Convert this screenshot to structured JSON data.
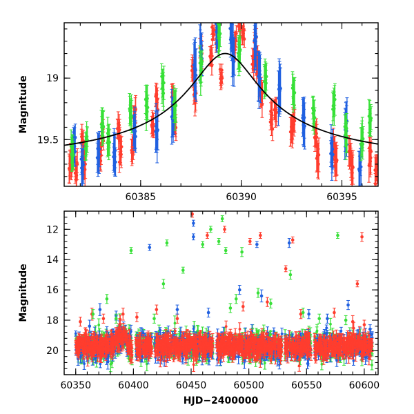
{
  "chart_data": [
    {
      "type": "scatter",
      "title": "",
      "xlabel": "",
      "ylabel": "Magnitude",
      "xlim": [
        60381.2,
        60396.8
      ],
      "ylim": [
        19.88,
        18.55
      ],
      "y_inverted": true,
      "error_bars": true,
      "x_ticks": [
        60385,
        60390,
        60395
      ],
      "x_tick_labels": [
        "60385",
        "60390",
        "60395"
      ],
      "y_ticks": [
        19,
        19.5
      ],
      "y_tick_labels": [
        "19",
        "19.5"
      ],
      "grid": false,
      "legend": "none",
      "series": [
        {
          "color": "#ff3d2e",
          "points": [
            [
              60381.5,
              19.72,
              0.09
            ],
            [
              60381.6,
              19.62,
              0.08
            ],
            [
              60381.8,
              19.75,
              0.1
            ],
            [
              60382.1,
              19.52,
              0.07
            ],
            [
              60382.2,
              19.68,
              0.1
            ],
            [
              60383.0,
              19.65,
              0.09
            ],
            [
              60383.1,
              19.48,
              0.07
            ],
            [
              60383.9,
              19.42,
              0.08
            ],
            [
              60384.0,
              19.6,
              0.09
            ],
            [
              60384.6,
              19.55,
              0.08
            ],
            [
              60384.7,
              19.3,
              0.09
            ],
            [
              60385.6,
              19.38,
              0.07
            ],
            [
              60385.8,
              19.2,
              0.08
            ],
            [
              60386.6,
              19.15,
              0.08
            ],
            [
              60386.7,
              19.35,
              0.09
            ],
            [
              60387.6,
              18.95,
              0.07
            ],
            [
              60387.7,
              19.15,
              0.08
            ],
            [
              60388.0,
              18.75,
              0.06
            ],
            [
              60388.5,
              18.82,
              0.06
            ],
            [
              60388.6,
              18.62,
              0.05
            ],
            [
              60388.8,
              18.7,
              0.06
            ],
            [
              60389.0,
              18.97,
              0.05
            ],
            [
              60389.7,
              18.72,
              0.06
            ],
            [
              60389.9,
              18.58,
              0.05
            ],
            [
              60390.1,
              18.62,
              0.06
            ],
            [
              60390.6,
              18.85,
              0.06
            ],
            [
              60390.7,
              18.68,
              0.06
            ],
            [
              60390.8,
              18.9,
              0.07
            ],
            [
              60391.0,
              19.12,
              0.08
            ],
            [
              60391.5,
              19.32,
              0.08
            ],
            [
              60391.7,
              19.25,
              0.08
            ],
            [
              60392.5,
              19.45,
              0.09
            ],
            [
              60392.6,
              19.35,
              0.08
            ],
            [
              60393.7,
              19.5,
              0.09
            ],
            [
              60393.8,
              19.62,
              0.1
            ],
            [
              60394.6,
              19.55,
              0.08
            ],
            [
              60394.7,
              19.68,
              0.1
            ],
            [
              60395.4,
              19.6,
              0.09
            ],
            [
              60395.5,
              19.72,
              0.1
            ],
            [
              60396.4,
              19.65,
              0.1
            ],
            [
              60396.7,
              19.78,
              0.1
            ]
          ]
        },
        {
          "color": "#2060e0",
          "points": [
            [
              60381.7,
              19.55,
              0.12
            ],
            [
              60382.1,
              19.72,
              0.12
            ],
            [
              60382.9,
              19.6,
              0.12
            ],
            [
              60383.7,
              19.65,
              0.12
            ],
            [
              60384.7,
              19.42,
              0.14
            ],
            [
              60385.8,
              19.45,
              0.14
            ],
            [
              60386.6,
              19.3,
              0.16
            ],
            [
              60387.7,
              18.95,
              0.18
            ],
            [
              60388.0,
              18.82,
              0.16
            ],
            [
              60388.8,
              18.6,
              0.15
            ],
            [
              60389.5,
              18.62,
              0.14
            ],
            [
              60389.6,
              18.8,
              0.16
            ],
            [
              60390.7,
              18.75,
              0.15
            ],
            [
              60390.9,
              19.0,
              0.15
            ],
            [
              60391.9,
              19.1,
              0.16
            ],
            [
              60393.1,
              19.35,
              0.15
            ],
            [
              60394.5,
              19.6,
              0.13
            ],
            [
              60395.2,
              19.4,
              0.15
            ],
            [
              60395.9,
              19.7,
              0.13
            ]
          ]
        },
        {
          "color": "#38e038",
          "points": [
            [
              60381.6,
              19.6,
              0.1
            ],
            [
              60382.3,
              19.55,
              0.1
            ],
            [
              60383.1,
              19.4,
              0.11
            ],
            [
              60383.4,
              19.5,
              0.1
            ],
            [
              60384.5,
              19.3,
              0.1
            ],
            [
              60385.3,
              19.2,
              0.1
            ],
            [
              60386.1,
              19.05,
              0.11
            ],
            [
              60386.7,
              19.25,
              0.1
            ],
            [
              60388.0,
              18.92,
              0.11
            ],
            [
              60388.9,
              18.65,
              0.12
            ],
            [
              60389.9,
              18.8,
              0.12
            ],
            [
              60391.2,
              19.0,
              0.11
            ],
            [
              60392.6,
              19.12,
              0.1
            ],
            [
              60393.6,
              19.3,
              0.1
            ],
            [
              60394.6,
              19.2,
              0.1
            ],
            [
              60395.2,
              19.45,
              0.1
            ],
            [
              60396.0,
              19.5,
              0.1
            ],
            [
              60396.4,
              19.35,
              0.1
            ]
          ]
        }
      ],
      "model_curve": {
        "color": "#000000",
        "peak_x": 60389.2,
        "peak_mag": 18.8,
        "baseline_mag": 19.75,
        "width_days": 2.6
      }
    },
    {
      "type": "scatter",
      "title": "",
      "xlabel": "HJD−2400000",
      "ylabel": "Magnitude",
      "xlim": [
        60340,
        60612
      ],
      "ylim": [
        21.6,
        10.8
      ],
      "y_inverted": true,
      "error_bars": true,
      "x_ticks": [
        60350,
        60400,
        60450,
        60500,
        60550,
        60600
      ],
      "x_tick_labels": [
        "60350",
        "60400",
        "60450",
        "60500",
        "60550",
        "60600"
      ],
      "y_ticks": [
        12,
        14,
        16,
        18,
        20
      ],
      "y_tick_labels": [
        "12",
        "14",
        "16",
        "18",
        "20"
      ],
      "grid": false,
      "legend": "none",
      "series": [
        {
          "color": "#ff3d2e",
          "outliers": [
            [
              60354,
              18.1,
              0.3
            ],
            [
              60364,
              17.6,
              0.4
            ],
            [
              60374,
              17.9,
              0.3
            ],
            [
              60391,
              17.6,
              0.4
            ],
            [
              60403,
              17.8,
              0.3
            ],
            [
              60420,
              17.3,
              0.3
            ],
            [
              60438,
              17.9,
              0.3
            ],
            [
              60451,
              11.0,
              0.2
            ],
            [
              60464,
              12.4,
              0.2
            ],
            [
              60479,
              12.0,
              0.2
            ],
            [
              60495,
              17.1,
              0.3
            ],
            [
              60501,
              12.8,
              0.2
            ],
            [
              60510,
              12.4,
              0.2
            ],
            [
              60516,
              16.8,
              0.3
            ],
            [
              60532,
              14.6,
              0.2
            ],
            [
              60538,
              12.7,
              0.2
            ],
            [
              60545,
              17.6,
              0.3
            ],
            [
              60574,
              17.5,
              0.3
            ],
            [
              60590,
              18.1,
              0.4
            ],
            [
              60594,
              15.6,
              0.2
            ],
            [
              60598,
              12.5,
              0.3
            ],
            [
              60600,
              18.3,
              0.3
            ]
          ]
        },
        {
          "color": "#2060e0",
          "outliers": [
            [
              60362,
              18.4,
              0.4
            ],
            [
              60371,
              17.3,
              0.4
            ],
            [
              60385,
              17.7,
              0.3
            ],
            [
              60414,
              13.2,
              0.2
            ],
            [
              60438,
              17.3,
              0.3
            ],
            [
              60452,
              11.6,
              0.2
            ],
            [
              60452,
              12.5,
              0.2
            ],
            [
              60465,
              17.5,
              0.3
            ],
            [
              60492,
              16.0,
              0.3
            ],
            [
              60507,
              13.0,
              0.2
            ],
            [
              60511,
              16.4,
              0.4
            ],
            [
              60535,
              12.9,
              0.3
            ],
            [
              60552,
              17.6,
              0.3
            ],
            [
              60568,
              17.9,
              0.3
            ],
            [
              60586,
              17.0,
              0.3
            ],
            [
              60605,
              18.6,
              0.3
            ]
          ]
        },
        {
          "color": "#38e038",
          "outliers": [
            [
              60365,
              17.6,
              0.3
            ],
            [
              60377,
              16.6,
              0.3
            ],
            [
              60385,
              17.9,
              0.3
            ],
            [
              60398,
              13.4,
              0.2
            ],
            [
              60418,
              17.9,
              0.3
            ],
            [
              60426,
              15.6,
              0.3
            ],
            [
              60429,
              12.9,
              0.2
            ],
            [
              60443,
              14.7,
              0.2
            ],
            [
              60460,
              13.0,
              0.2
            ],
            [
              60467,
              12.0,
              0.2
            ],
            [
              60474,
              12.8,
              0.2
            ],
            [
              60477,
              11.3,
              0.2
            ],
            [
              60480,
              13.4,
              0.2
            ],
            [
              60484,
              17.2,
              0.3
            ],
            [
              60489,
              16.6,
              0.3
            ],
            [
              60494,
              13.5,
              0.3
            ],
            [
              60508,
              16.2,
              0.3
            ],
            [
              60519,
              16.9,
              0.3
            ],
            [
              60536,
              15.0,
              0.3
            ],
            [
              60547,
              17.5,
              0.3
            ],
            [
              60561,
              17.9,
              0.3
            ],
            [
              60577,
              12.4,
              0.2
            ],
            [
              60584,
              18.0,
              0.3
            ]
          ]
        }
      ],
      "baseline_band": {
        "start_x": 60350,
        "end_x": 60607,
        "mean_mag": 19.7,
        "scatter": 0.5,
        "colors": [
          "#ff3d2e",
          "#2060e0",
          "#38e038"
        ],
        "gaps": [
          [
            60399,
            60402
          ],
          [
            60416,
            60418
          ],
          [
            60469,
            60472
          ],
          [
            60529,
            60531
          ],
          [
            60554,
            60557
          ]
        ],
        "bump_x": 60390,
        "bump_mag": 19.0
      }
    }
  ]
}
